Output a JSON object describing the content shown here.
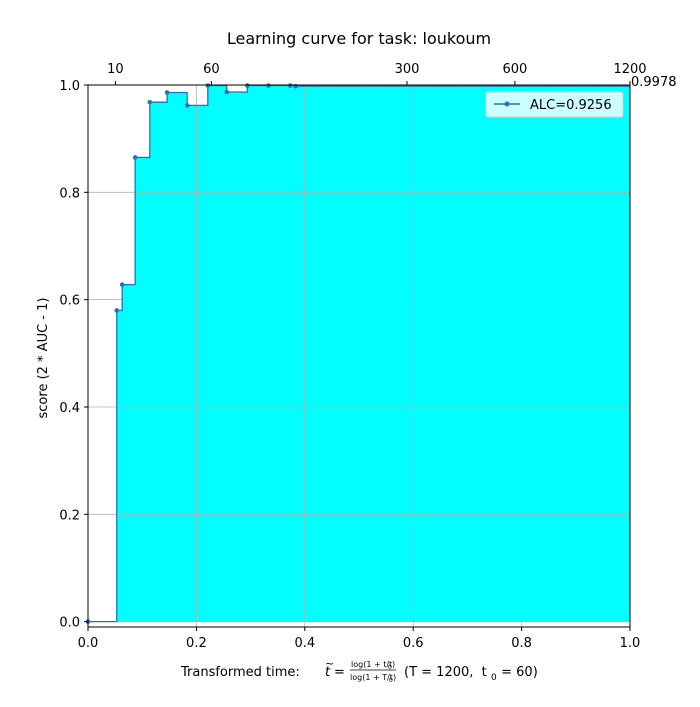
{
  "chart_data": {
    "type": "area",
    "title": "Learning curve for task: loukoum",
    "xlabel_prefix": "Transformed time: ",
    "xlabel_formula": {
      "t_symbol": "t",
      "eq": "=",
      "numerator": "log(1 + t/t",
      "denominator": "log(1 + T/t",
      "sub": "0",
      "close": ")"
    },
    "xlabel_params": "(T = 1200,  t",
    "xlabel_params_end": " = 60)",
    "ylabel": "score (2 * AUC - 1)",
    "xlim": [
      0,
      1
    ],
    "ylim": [
      -0.01,
      1
    ],
    "x_ticks": [
      "0.0",
      "0.2",
      "0.4",
      "0.6",
      "0.8",
      "1.0"
    ],
    "y_ticks": [
      "0.0",
      "0.2",
      "0.4",
      "0.6",
      "0.8",
      "1.0"
    ],
    "top_axis_ticks": [
      {
        "t": 10,
        "label": "10"
      },
      {
        "t": 60,
        "label": "60"
      },
      {
        "t": 300,
        "label": "300"
      },
      {
        "t": 600,
        "label": "600"
      },
      {
        "t": 1200,
        "label": "1200"
      }
    ],
    "T": 1200,
    "t0": 60,
    "final_value_label": "0.9978",
    "final_value": 0.9978,
    "grid": true,
    "legend": {
      "position": "top-right",
      "label": "ALC=0.9256"
    },
    "colors": {
      "line": "#1f77b4",
      "fill": "#00ffff",
      "final_line": "#ff7f0e"
    },
    "points": [
      {
        "x": 0.0,
        "y": 0.0
      },
      {
        "x": 0.053,
        "y": 0.58
      },
      {
        "x": 0.063,
        "y": 0.628
      },
      {
        "x": 0.087,
        "y": 0.865
      },
      {
        "x": 0.114,
        "y": 0.968
      },
      {
        "x": 0.146,
        "y": 0.986
      },
      {
        "x": 0.183,
        "y": 0.962
      },
      {
        "x": 0.221,
        "y": 0.999
      },
      {
        "x": 0.256,
        "y": 0.987
      },
      {
        "x": 0.294,
        "y": 0.999
      },
      {
        "x": 0.333,
        "y": 0.999
      },
      {
        "x": 0.373,
        "y": 0.999
      },
      {
        "x": 0.383,
        "y": 0.9978
      }
    ]
  }
}
